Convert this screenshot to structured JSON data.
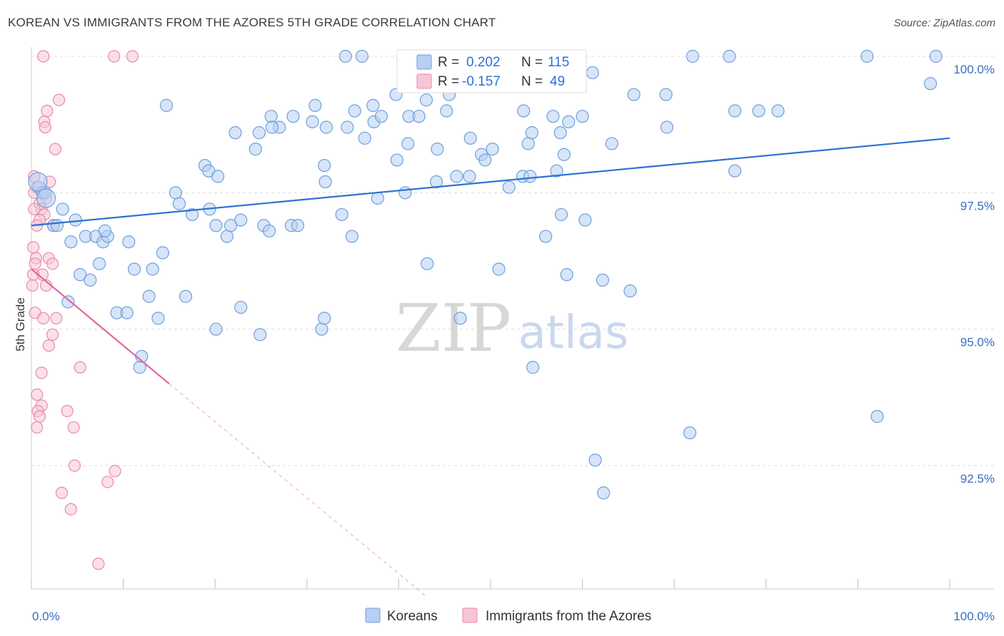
{
  "title": "KOREAN VS IMMIGRANTS FROM THE AZORES 5TH GRADE CORRELATION CHART",
  "source": "Source: ZipAtlas.com",
  "watermark": {
    "zip": "ZIP",
    "atlas": "atlas"
  },
  "colors": {
    "korean": "#6e9fdf",
    "korean_fill": "#b7cff0",
    "azores": "#e98aa9",
    "azores_fill": "#f6c6d6",
    "korean_line": "#2d72d2",
    "azores_line": "#e0689a",
    "tick_text": "#3a6cc4",
    "grid": "#dcdcdc"
  },
  "legend": {
    "r_label": "R =",
    "n_label": "N =",
    "korean": {
      "r": "0.202",
      "n": "115"
    },
    "azores": {
      "r": "-0.157",
      "n": "49"
    }
  },
  "chart_data": {
    "type": "scatter",
    "title": "KOREAN VS IMMIGRANTS FROM THE AZORES 5TH GRADE CORRELATION CHART",
    "xlabel": "",
    "ylabel": "5th Grade",
    "xlim": [
      0,
      100
    ],
    "ylim": [
      90.5,
      100.2
    ],
    "x_tick_labels": [
      "0.0%",
      "100.0%"
    ],
    "y_ticks": [
      92.5,
      95.0,
      97.5,
      100.0
    ],
    "y_tick_labels": [
      "92.5%",
      "95.0%",
      "97.5%",
      "100.0%"
    ],
    "grid": true,
    "legend_position": "top-center",
    "series": [
      {
        "name": "Koreans",
        "trend": {
          "x": [
            0,
            100
          ],
          "y": [
            96.9,
            98.5
          ]
        },
        "points": [
          [
            0.8,
            97.6
          ],
          [
            1.2,
            97.5
          ],
          [
            1.5,
            97.5
          ],
          [
            3.4,
            97.2
          ],
          [
            2.4,
            96.9
          ],
          [
            2.8,
            96.9
          ],
          [
            4.8,
            97.0
          ],
          [
            4.3,
            96.6
          ],
          [
            5.9,
            96.7
          ],
          [
            7.0,
            96.7
          ],
          [
            7.8,
            96.6
          ],
          [
            8.3,
            96.7
          ],
          [
            8.0,
            96.8
          ],
          [
            10.6,
            96.6
          ],
          [
            11.2,
            96.1
          ],
          [
            13.2,
            96.1
          ],
          [
            14.3,
            96.4
          ],
          [
            5.3,
            96.0
          ],
          [
            6.4,
            95.9
          ],
          [
            7.4,
            96.2
          ],
          [
            4.0,
            95.5
          ],
          [
            9.3,
            95.3
          ],
          [
            10.4,
            95.3
          ],
          [
            12.8,
            95.6
          ],
          [
            13.8,
            95.2
          ],
          [
            16.8,
            95.6
          ],
          [
            12.0,
            94.5
          ],
          [
            11.8,
            94.3
          ],
          [
            20.1,
            95.0
          ],
          [
            22.8,
            95.4
          ],
          [
            24.9,
            94.9
          ],
          [
            31.6,
            95.0
          ],
          [
            31.9,
            95.2
          ],
          [
            46.7,
            95.2
          ],
          [
            17.5,
            97.1
          ],
          [
            19.4,
            97.2
          ],
          [
            20.1,
            96.9
          ],
          [
            16.1,
            97.3
          ],
          [
            15.7,
            97.5
          ],
          [
            25.3,
            96.9
          ],
          [
            22.8,
            97.0
          ],
          [
            25.9,
            96.8
          ],
          [
            21.3,
            96.7
          ],
          [
            28.3,
            96.9
          ],
          [
            29.0,
            96.9
          ],
          [
            33.8,
            97.1
          ],
          [
            21.7,
            96.9
          ],
          [
            34.9,
            96.7
          ],
          [
            43.1,
            96.2
          ],
          [
            50.9,
            96.1
          ],
          [
            58.3,
            96.0
          ],
          [
            62.2,
            95.9
          ],
          [
            65.2,
            95.7
          ],
          [
            56.0,
            96.7
          ],
          [
            60.3,
            97.0
          ],
          [
            57.7,
            97.1
          ],
          [
            37.7,
            97.4
          ],
          [
            32.0,
            97.7
          ],
          [
            40.7,
            97.5
          ],
          [
            44.1,
            97.7
          ],
          [
            46.3,
            97.8
          ],
          [
            47.7,
            97.8
          ],
          [
            53.5,
            97.8
          ],
          [
            52.0,
            97.6
          ],
          [
            54.3,
            97.8
          ],
          [
            57.2,
            97.9
          ],
          [
            18.9,
            98.0
          ],
          [
            19.3,
            97.9
          ],
          [
            20.3,
            97.8
          ],
          [
            31.9,
            98.0
          ],
          [
            39.8,
            98.1
          ],
          [
            41.0,
            98.4
          ],
          [
            44.2,
            98.3
          ],
          [
            47.8,
            98.5
          ],
          [
            49.0,
            98.2
          ],
          [
            49.4,
            98.1
          ],
          [
            50.2,
            98.3
          ],
          [
            54.1,
            98.4
          ],
          [
            54.5,
            98.6
          ],
          [
            56.8,
            98.9
          ],
          [
            58.5,
            98.8
          ],
          [
            57.6,
            98.6
          ],
          [
            24.4,
            98.3
          ],
          [
            27.0,
            98.7
          ],
          [
            22.2,
            98.6
          ],
          [
            26.1,
            98.9
          ],
          [
            26.2,
            98.7
          ],
          [
            24.8,
            98.6
          ],
          [
            28.5,
            98.9
          ],
          [
            30.6,
            98.8
          ],
          [
            32.1,
            98.7
          ],
          [
            34.4,
            98.7
          ],
          [
            35.2,
            99.0
          ],
          [
            36.3,
            98.5
          ],
          [
            37.3,
            98.8
          ],
          [
            38.1,
            98.9
          ],
          [
            41.1,
            98.9
          ],
          [
            42.2,
            98.9
          ],
          [
            45.2,
            99.0
          ],
          [
            45.5,
            99.3
          ],
          [
            43.0,
            99.2
          ],
          [
            44.3,
            99.7
          ],
          [
            39.7,
            99.3
          ],
          [
            37.2,
            99.1
          ],
          [
            14.7,
            99.1
          ],
          [
            30.9,
            99.1
          ],
          [
            60.0,
            98.9
          ],
          [
            36.0,
            100.0
          ],
          [
            34.2,
            100.0
          ],
          [
            69.2,
            98.7
          ],
          [
            69.1,
            99.3
          ],
          [
            65.6,
            99.3
          ],
          [
            61.1,
            99.7
          ],
          [
            63.2,
            98.4
          ],
          [
            53.6,
            99.0
          ],
          [
            58.0,
            98.2
          ],
          [
            76.6,
            99.0
          ],
          [
            76.6,
            97.9
          ],
          [
            92.1,
            93.4
          ],
          [
            71.7,
            93.1
          ],
          [
            61.4,
            92.6
          ],
          [
            62.3,
            92.0
          ],
          [
            54.6,
            94.3
          ],
          [
            72.0,
            100.0
          ],
          [
            76.0,
            100.0
          ],
          [
            91.0,
            100.0
          ],
          [
            98.5,
            100.0
          ],
          [
            97.9,
            99.5
          ],
          [
            81.3,
            99.0
          ],
          [
            79.2,
            99.0
          ]
        ],
        "large_points": [
          [
            0.7,
            97.7
          ],
          [
            1.6,
            97.4
          ]
        ]
      },
      {
        "name": "Immigrants from the Azores",
        "trend": {
          "x": [
            0,
            15
          ],
          "y": [
            96.1,
            94.0
          ]
        },
        "trend_extension": {
          "x": [
            15,
            43
          ],
          "y": [
            94.0,
            90.1
          ]
        },
        "points": [
          [
            1.3,
            100.0
          ],
          [
            9.0,
            100.0
          ],
          [
            11.0,
            100.0
          ],
          [
            3.0,
            99.2
          ],
          [
            1.7,
            99.0
          ],
          [
            1.4,
            98.8
          ],
          [
            1.5,
            98.7
          ],
          [
            2.6,
            98.3
          ],
          [
            0.3,
            97.8
          ],
          [
            2.0,
            97.7
          ],
          [
            0.6,
            97.6
          ],
          [
            1.2,
            97.5
          ],
          [
            0.3,
            97.5
          ],
          [
            1.6,
            97.4
          ],
          [
            0.9,
            97.3
          ],
          [
            1.1,
            97.2
          ],
          [
            0.3,
            97.2
          ],
          [
            1.4,
            97.1
          ],
          [
            0.9,
            97.0
          ],
          [
            2.4,
            96.9
          ],
          [
            0.6,
            96.9
          ],
          [
            0.2,
            96.5
          ],
          [
            1.9,
            96.3
          ],
          [
            2.3,
            96.2
          ],
          [
            0.5,
            96.3
          ],
          [
            0.4,
            96.2
          ],
          [
            1.2,
            96.0
          ],
          [
            0.2,
            96.0
          ],
          [
            1.6,
            95.8
          ],
          [
            0.1,
            95.8
          ],
          [
            0.4,
            95.3
          ],
          [
            1.3,
            95.2
          ],
          [
            2.7,
            95.2
          ],
          [
            2.3,
            94.9
          ],
          [
            1.9,
            94.7
          ],
          [
            5.3,
            94.3
          ],
          [
            1.1,
            94.2
          ],
          [
            0.6,
            93.8
          ],
          [
            1.1,
            93.6
          ],
          [
            0.7,
            93.5
          ],
          [
            3.9,
            93.5
          ],
          [
            0.9,
            93.4
          ],
          [
            4.6,
            93.2
          ],
          [
            0.6,
            93.2
          ],
          [
            4.7,
            92.5
          ],
          [
            9.1,
            92.4
          ],
          [
            3.3,
            92.0
          ],
          [
            8.3,
            92.2
          ],
          [
            4.3,
            91.7
          ],
          [
            7.3,
            90.7
          ]
        ]
      }
    ]
  },
  "bottom_legend": {
    "korean": "Koreans",
    "azores": "Immigrants from the Azores"
  }
}
